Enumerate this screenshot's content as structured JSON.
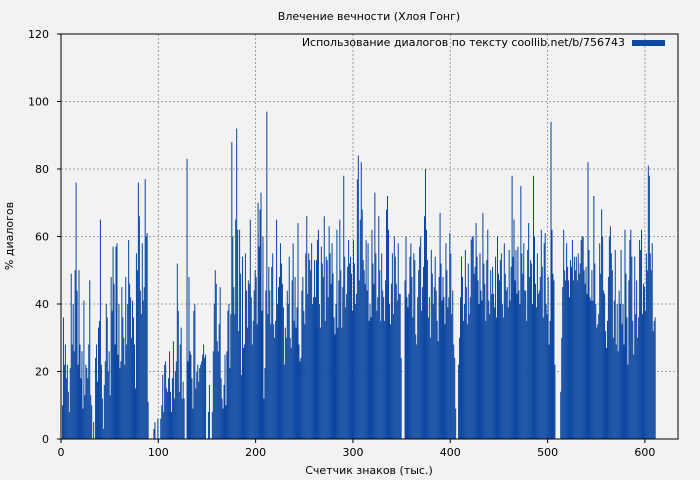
{
  "chart_data": {
    "type": "bar",
    "title": "Влечение вечности (Хлоя Гонг)",
    "xlabel": "Счетчик знаков (тыс.)",
    "ylabel": "% диалогов",
    "xlim": [
      0,
      634
    ],
    "ylim": [
      0,
      120
    ],
    "xticks": [
      0,
      100,
      200,
      300,
      400,
      500,
      600
    ],
    "yticks": [
      0,
      20,
      40,
      60,
      80,
      100,
      120
    ],
    "grid": true,
    "legend_position": "top-right",
    "series": [
      {
        "name": "Использование диалогов по тексту coollib.net/b/756743",
        "color": "#0d47a1",
        "bin_width": 1,
        "x_start": 1,
        "values": [
          10,
          36,
          22,
          28,
          18,
          22,
          14,
          8,
          21,
          49,
          28,
          40,
          26,
          50,
          76,
          44,
          22,
          50,
          28,
          18,
          26,
          9,
          41,
          13,
          22,
          21,
          18,
          28,
          47,
          13,
          10,
          0,
          5,
          0,
          24,
          28,
          17,
          33,
          35,
          65,
          22,
          12,
          3,
          16,
          23,
          40,
          36,
          20,
          26,
          13,
          48,
          38,
          57,
          46,
          28,
          57,
          58,
          25,
          40,
          21,
          23,
          45,
          36,
          30,
          22,
          48,
          28,
          40,
          59,
          46,
          42,
          30,
          41,
          36,
          28,
          15,
          55,
          50,
          76,
          66,
          44,
          37,
          58,
          41,
          45,
          77,
          60,
          61,
          11,
          0,
          0,
          0,
          0,
          0,
          3,
          5,
          0,
          0,
          6,
          0,
          0,
          6,
          10,
          19,
          8,
          22,
          23,
          15,
          14,
          18,
          26,
          14,
          8,
          18,
          29,
          12,
          20,
          23,
          52,
          38,
          14,
          28,
          33,
          12,
          17,
          12,
          0,
          0,
          83,
          23,
          48,
          26,
          25,
          18,
          9,
          38,
          40,
          15,
          20,
          22,
          17,
          21,
          22,
          23,
          25,
          28,
          24,
          25,
          0,
          0,
          8,
          16,
          0,
          0,
          8,
          26,
          40,
          50,
          46,
          29,
          26,
          34,
          45,
          18,
          12,
          9,
          16,
          25,
          10,
          26,
          38,
          40,
          21,
          37,
          88,
          60,
          45,
          37,
          65,
          92,
          62,
          32,
          62,
          49,
          19,
          54,
          27,
          28,
          55,
          44,
          33,
          47,
          46,
          65,
          42,
          28,
          35,
          44,
          50,
          48,
          34,
          70,
          57,
          68,
          73,
          38,
          60,
          12,
          21,
          44,
          97,
          37,
          51,
          44,
          34,
          51,
          55,
          34,
          30,
          35,
          65,
          40,
          45,
          48,
          58,
          52,
          46,
          39,
          22,
          33,
          30,
          44,
          40,
          54,
          30,
          27,
          47,
          58,
          35,
          48,
          33,
          39,
          64,
          28,
          23,
          24,
          44,
          48,
          38,
          34,
          55,
          66,
          43,
          55,
          53,
          50,
          58,
          40,
          42,
          53,
          42,
          53,
          59,
          62,
          40,
          33,
          57,
          52,
          48,
          66,
          35,
          54,
          53,
          42,
          63,
          55,
          46,
          58,
          49,
          36,
          31,
          40,
          62,
          33,
          47,
          65,
          50,
          33,
          45,
          78,
          54,
          39,
          43,
          51,
          59,
          52,
          54,
          49,
          38,
          59,
          52,
          40,
          43,
          77,
          84,
          47,
          65,
          82,
          68,
          53,
          50,
          46,
          59,
          44,
          58,
          35,
          40,
          36,
          62,
          52,
          46,
          73,
          55,
          38,
          42,
          66,
          50,
          35,
          55,
          44,
          42,
          35,
          47,
          68,
          72,
          62,
          40,
          34,
          46,
          55,
          37,
          60,
          54,
          46,
          41,
          58,
          43,
          43,
          24,
          0,
          0,
          0,
          47,
          60,
          42,
          39,
          43,
          54,
          58,
          48,
          36,
          55,
          53,
          31,
          28,
          42,
          50,
          57,
          60,
          38,
          45,
          51,
          66,
          80,
          62,
          53,
          36,
          42,
          30,
          56,
          49,
          40,
          45,
          54,
          44,
          35,
          29,
          48,
          67,
          52,
          41,
          48,
          42,
          34,
          58,
          50,
          39,
          42,
          61,
          55,
          37,
          44,
          28,
          24,
          9,
          0,
          0,
          22,
          30,
          42,
          54,
          48,
          35,
          40,
          56,
          45,
          34,
          52,
          37,
          42,
          59,
          60,
          60,
          49,
          51,
          64,
          54,
          47,
          40,
          55,
          44,
          41,
          67,
          52,
          46,
          35,
          53,
          62,
          41,
          37,
          50,
          43,
          51,
          43,
          39,
          54,
          36,
          60,
          49,
          47,
          53,
          55,
          40,
          36,
          58,
          49,
          44,
          45,
          39,
          56,
          41,
          51,
          78,
          54,
          65,
          47,
          56,
          43,
          57,
          44,
          40,
          75,
          55,
          49,
          58,
          44,
          44,
          35,
          56,
          64,
          48,
          53,
          52,
          40,
          78,
          60,
          46,
          39,
          55,
          43,
          44,
          48,
          62,
          51,
          36,
          58,
          61,
          40,
          37,
          48,
          28,
          35,
          94,
          62,
          49,
          47,
          22,
          0,
          0,
          0,
          0,
          0,
          14,
          30,
          45,
          62,
          50,
          47,
          58,
          51,
          47,
          42,
          53,
          51,
          59,
          47,
          54,
          50,
          54,
          47,
          55,
          49,
          52,
          59,
          60,
          60,
          50,
          46,
          51,
          43,
          82,
          56,
          42,
          41,
          50,
          41,
          72,
          52,
          40,
          33,
          34,
          37,
          58,
          49,
          68,
          60,
          44,
          43,
          32,
          27,
          35,
          48,
          60,
          63,
          55,
          50,
          30,
          41,
          56,
          28,
          40,
          26,
          44,
          40,
          56,
          34,
          40,
          28,
          62,
          49,
          36,
          22,
          47,
          59,
          62,
          54,
          35,
          25,
          54,
          37,
          47,
          30,
          36,
          59,
          56,
          62,
          37,
          46,
          45,
          38,
          55,
          50,
          81,
          78,
          55,
          50,
          58,
          32,
          35,
          36
        ]
      }
    ]
  }
}
